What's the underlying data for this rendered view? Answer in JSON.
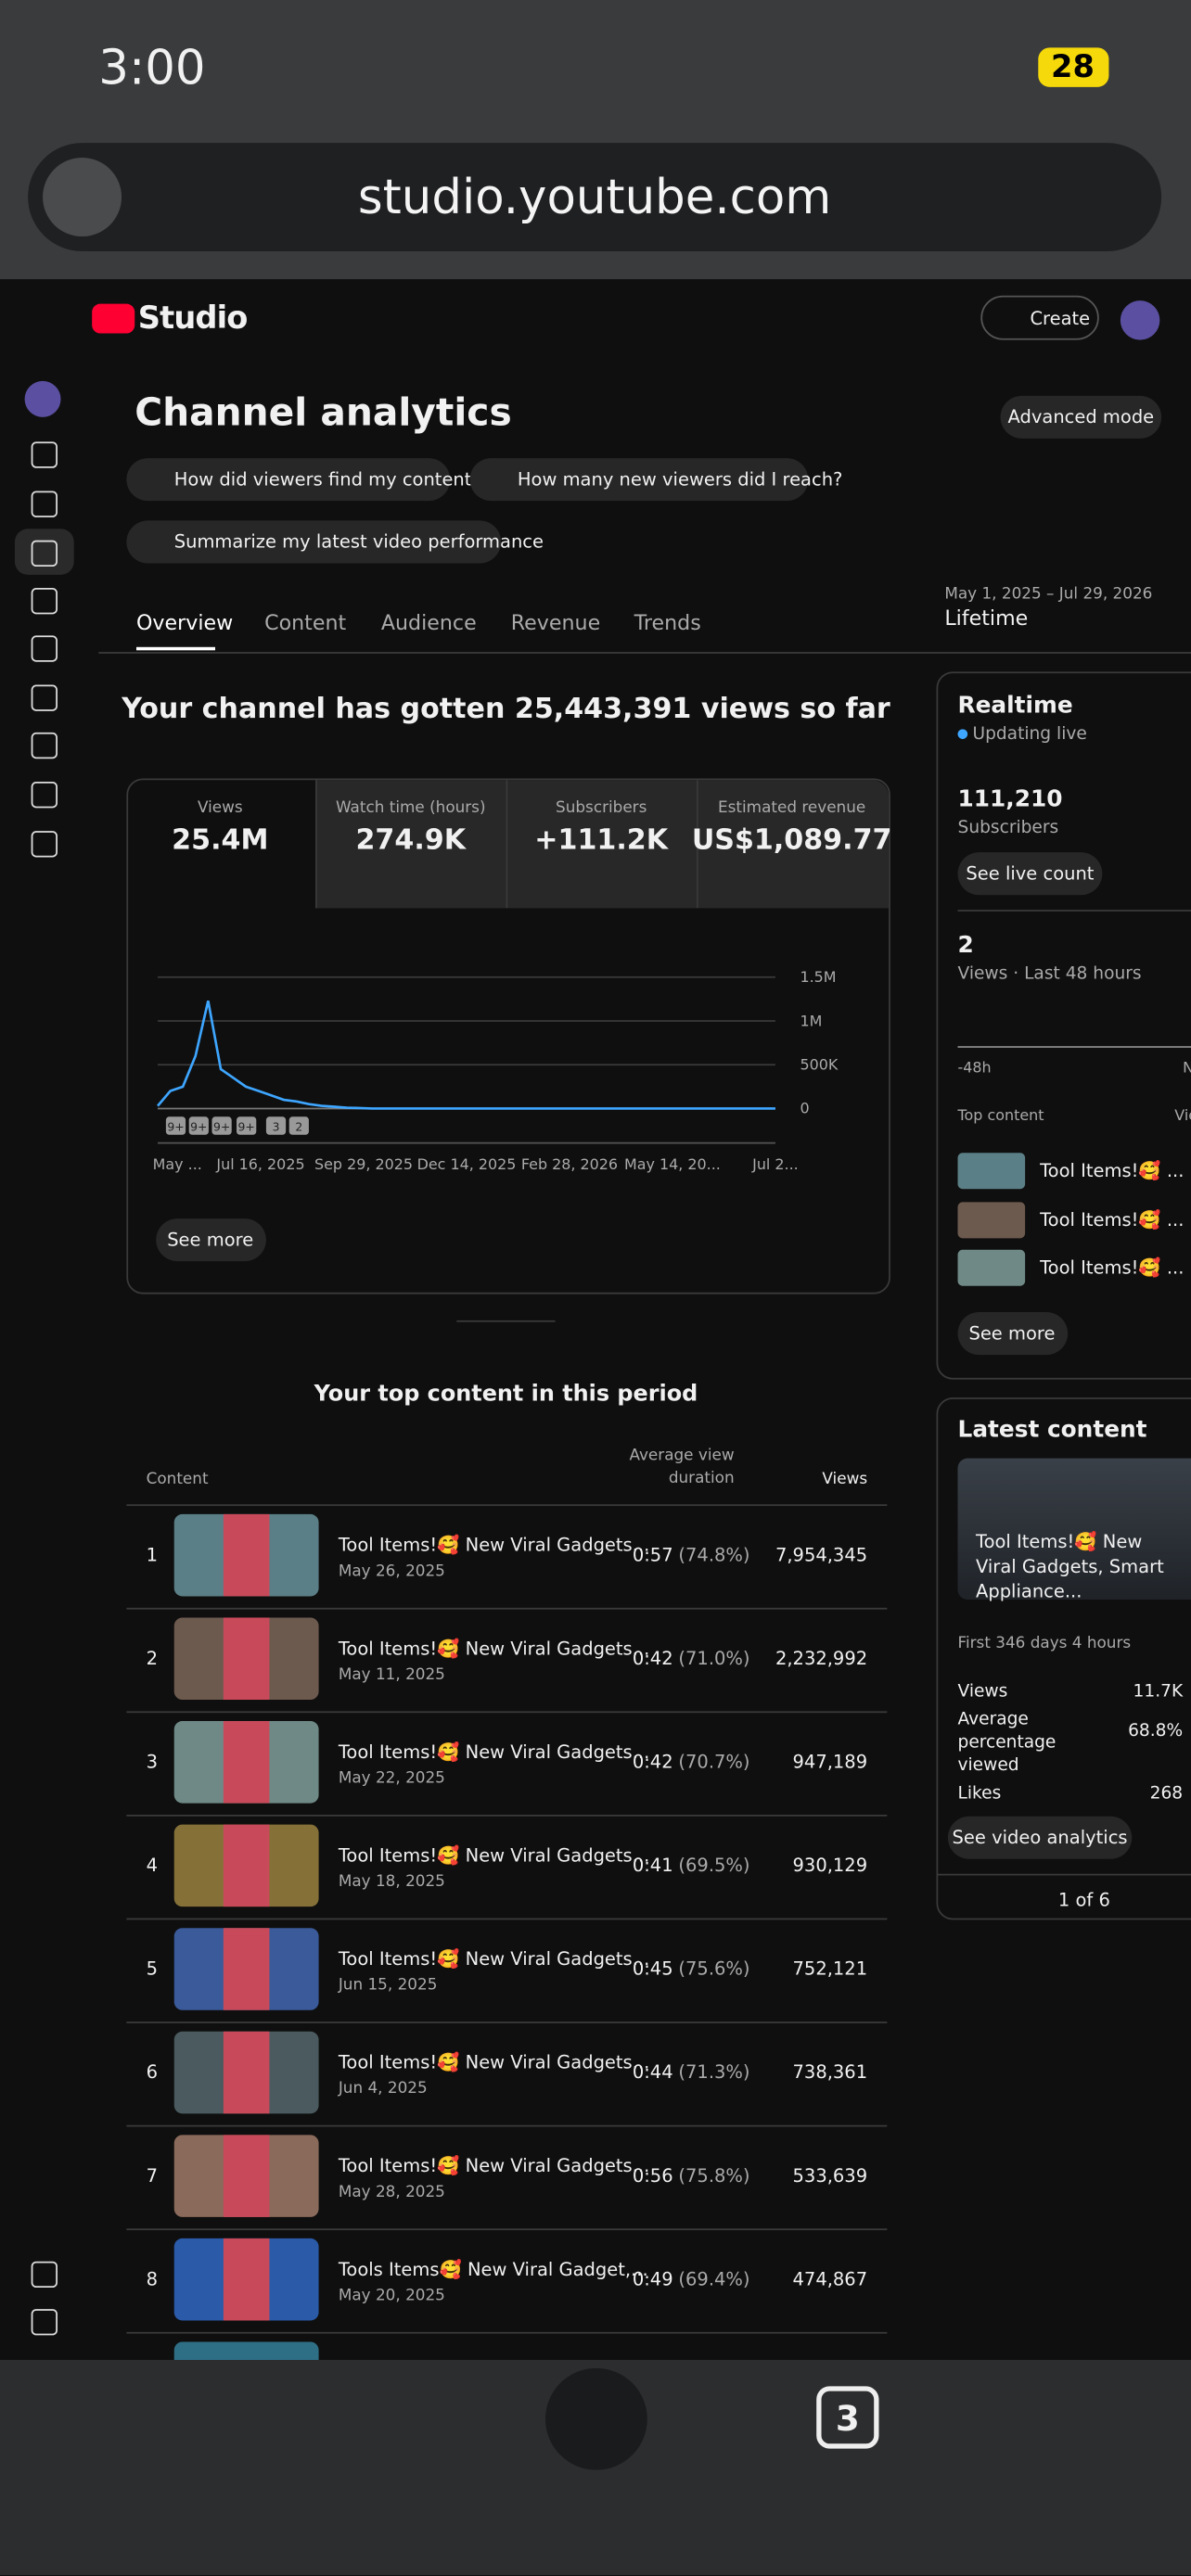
{
  "status": {
    "time": "3:00",
    "battery": "28"
  },
  "browser": {
    "url": "studio.youtube.com",
    "tab_count": "3"
  },
  "header": {
    "brand": "Studio",
    "create": "Create"
  },
  "page": {
    "title": "Channel analytics",
    "advanced": "Advanced mode",
    "prompts": [
      "How did viewers find my content?",
      "How many new viewers did I reach?",
      "Summarize my latest video performance"
    ],
    "tabs": [
      "Overview",
      "Content",
      "Audience",
      "Revenue",
      "Trends"
    ],
    "date_range": "May 1, 2025 – Jul 29, 2026",
    "period": "Lifetime"
  },
  "overview": {
    "headline": "Your channel has gotten 25,443,391 views so far",
    "metrics": [
      {
        "label": "Views",
        "value": "25.4M"
      },
      {
        "label": "Watch time (hours)",
        "value": "274.9K"
      },
      {
        "label": "Subscribers",
        "value": "+111.2K"
      },
      {
        "label": "Estimated revenue",
        "value": "US$1,089.77"
      }
    ],
    "see_more": "See more"
  },
  "chart": {
    "type": "line",
    "color": "#3ea6ff",
    "ylim": [
      0,
      1500000
    ],
    "yticks": [
      {
        "value": 0,
        "label": "0"
      },
      {
        "value": 500000,
        "label": "500K"
      },
      {
        "value": 1000000,
        "label": "1M"
      },
      {
        "value": 1500000,
        "label": "1.5M"
      }
    ],
    "x_labels": [
      "May ...",
      "Jul 16, 2025",
      "Sep 29, 2025",
      "Dec 14, 2025",
      "Feb 28, 2026",
      "May 14, 20...",
      "Jul 2..."
    ],
    "markers": [
      "9+",
      "9+",
      "9+",
      "9+",
      "3",
      "2"
    ],
    "values": [
      30000,
      200000,
      250000,
      600000,
      1230000,
      450000,
      350000,
      250000,
      200000,
      150000,
      100000,
      80000,
      50000,
      30000,
      20000,
      10000,
      5000,
      0,
      0,
      0,
      0,
      0,
      0,
      0,
      0,
      0,
      0,
      0,
      0,
      0,
      0,
      0,
      0,
      0,
      0,
      0,
      0,
      0,
      0,
      0,
      0,
      0,
      0,
      0,
      0,
      0,
      0,
      0,
      0,
      0
    ]
  },
  "top_content": {
    "title": "Your top content in this period",
    "columns": [
      "Content",
      "Average view duration",
      "Views"
    ],
    "rows": [
      {
        "rank": "1",
        "title": "Tool Items!🥰 New Viral Gadgets...",
        "date": "May 26, 2025",
        "duration": "0:57",
        "percent": "(74.8%)",
        "views": "7,954,345"
      },
      {
        "rank": "2",
        "title": "Tool Items!🥰 New Viral Gadgets...",
        "date": "May 11, 2025",
        "duration": "0:42",
        "percent": "(71.0%)",
        "views": "2,232,992"
      },
      {
        "rank": "3",
        "title": "Tool Items!🥰 New Viral Gadgets...",
        "date": "May 22, 2025",
        "duration": "0:42",
        "percent": "(70.7%)",
        "views": "947,189"
      },
      {
        "rank": "4",
        "title": "Tool Items!🥰 New Viral Gadgets...",
        "date": "May 18, 2025",
        "duration": "0:41",
        "percent": "(69.5%)",
        "views": "930,129"
      },
      {
        "rank": "5",
        "title": "Tool Items!🥰 New Viral Gadgets...",
        "date": "Jun 15, 2025",
        "duration": "0:45",
        "percent": "(75.6%)",
        "views": "752,121"
      },
      {
        "rank": "6",
        "title": "Tool Items!🥰 New Viral Gadgets...",
        "date": "Jun 4, 2025",
        "duration": "0:44",
        "percent": "(71.3%)",
        "views": "738,361"
      },
      {
        "rank": "7",
        "title": "Tool Items!🥰 New Viral Gadgets...",
        "date": "May 28, 2025",
        "duration": "0:56",
        "percent": "(75.8%)",
        "views": "533,639"
      },
      {
        "rank": "8",
        "title": "Tools Items🥰 New Viral Gadget,...",
        "date": "May 20, 2025",
        "duration": "0:49",
        "percent": "(69.4%)",
        "views": "474,867"
      }
    ]
  },
  "realtime": {
    "title": "Realtime",
    "status": "Updating live",
    "subscribers": "111,210",
    "subscribers_label": "Subscribers",
    "live_button": "See live count",
    "views": "2",
    "views_label": "Views · Last 48 hours",
    "axis_start": "-48h",
    "axis_end": "N",
    "top_label": "Top content",
    "top_column": "Vie",
    "items": [
      "Tool Items!🥰 ...",
      "Tool Items!🥰 ...",
      "Tool Items!🥰 ..."
    ],
    "see_more": "See more"
  },
  "latest": {
    "title": "Latest content",
    "video_title": "Tool Items!🥰 New Viral Gadgets, Smart Appliance...",
    "age": "First 346 days 4 hours",
    "stats": [
      {
        "label": "Views",
        "value": "11.7K"
      },
      {
        "label": "Average percentage viewed",
        "value": "68.8%"
      },
      {
        "label": "Likes",
        "value": "268"
      }
    ],
    "button": "See video analytics",
    "pager": "1 of 6"
  }
}
